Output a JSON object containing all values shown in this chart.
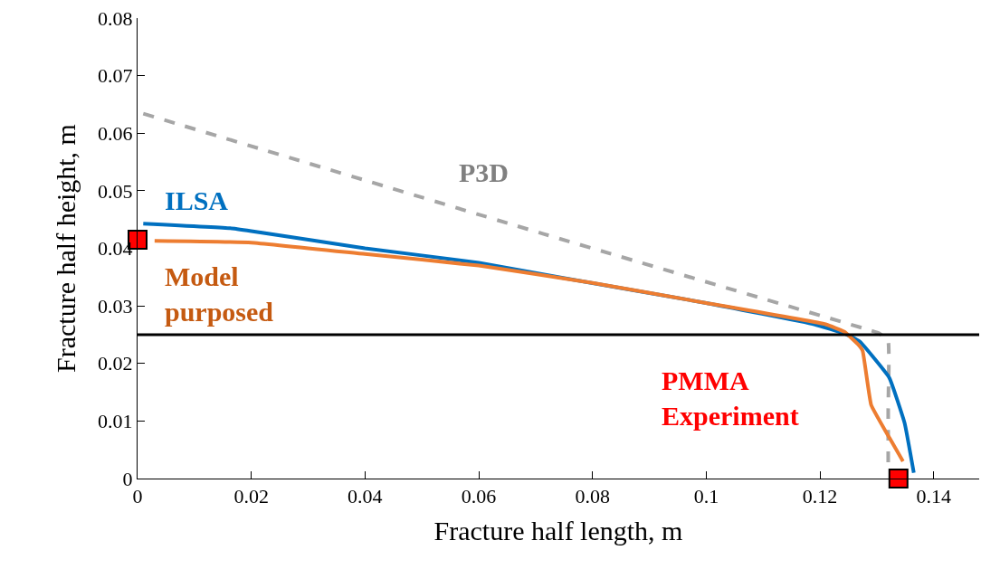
{
  "chart_data": {
    "type": "line",
    "xlabel": "Fracture half length, m",
    "ylabel": "Fracture half height, m",
    "xlim": [
      0,
      0.148
    ],
    "xticks": [
      0,
      0.02,
      0.04,
      0.06,
      0.08,
      0.1,
      0.12,
      0.14
    ],
    "ylim": [
      0,
      0.08
    ],
    "yticks": [
      0,
      0.01,
      0.02,
      0.03,
      0.04,
      0.05,
      0.06,
      0.07,
      0.08
    ],
    "legend": false,
    "ref_lines": [
      {
        "axis": "y",
        "value": 0.025,
        "color": "#000000",
        "line_style": "solid"
      }
    ],
    "series": [
      {
        "name": "P3D",
        "color": "#a6a6a6",
        "line_style": "dashed",
        "marker": "none",
        "x": [
          0.001,
          0.0714,
          0.128,
          0.1305,
          0.132,
          0.132,
          0.132
        ],
        "values": [
          0.0634,
          0.0425,
          0.026,
          0.0252,
          0.0238,
          0.012,
          0.001
        ]
      },
      {
        "name": "ILSA",
        "color": "#0070c0",
        "line_style": "solid",
        "marker": "none",
        "x": [
          0.001,
          0.0163,
          0.02,
          0.04,
          0.06,
          0.0746,
          0.1,
          0.119,
          0.1243,
          0.127,
          0.1322,
          0.1349,
          0.1365
        ],
        "values": [
          0.0443,
          0.0435,
          0.043,
          0.04,
          0.0375,
          0.0349,
          0.0305,
          0.0268,
          0.0252,
          0.0238,
          0.0175,
          0.0096,
          0.001
        ]
      },
      {
        "name": "Model purposed",
        "color": "#ed7d31",
        "line_style": "solid",
        "marker": "none",
        "x": [
          0.003,
          0.02,
          0.04,
          0.06,
          0.08,
          0.1,
          0.121,
          0.1243,
          0.1267,
          0.1275,
          0.129,
          0.1322,
          0.1346
        ],
        "values": [
          0.0413,
          0.041,
          0.039,
          0.037,
          0.034,
          0.0305,
          0.0268,
          0.0255,
          0.0233,
          0.0222,
          0.0128,
          0.0071,
          0.003
        ]
      },
      {
        "name": "PMMA Experiment",
        "type": "scatter",
        "color": "#ff0000",
        "marker": "square",
        "x": [
          0,
          0.1338
        ],
        "values": [
          0.0415,
          0
        ]
      }
    ]
  }
}
